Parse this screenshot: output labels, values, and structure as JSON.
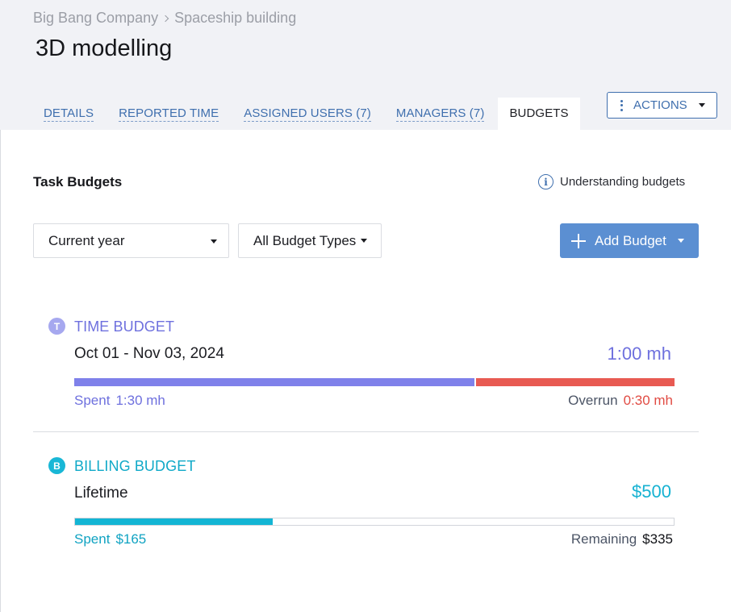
{
  "breadcrumb": {
    "company": "Big Bang Company",
    "project": "Spaceship building"
  },
  "page_title": "3D modelling",
  "tabs": [
    {
      "label": "DETAILS",
      "active": false
    },
    {
      "label": "REPORTED TIME",
      "active": false
    },
    {
      "label": "ASSIGNED USERS (7)",
      "active": false
    },
    {
      "label": "MANAGERS (7)",
      "active": false
    },
    {
      "label": "BUDGETS",
      "active": true
    }
  ],
  "actions": {
    "label": "ACTIONS",
    "icon": "kebab-icon"
  },
  "section": {
    "title": "Task Budgets",
    "help_label": "Understanding budgets",
    "help_icon": "info-icon"
  },
  "filters": {
    "period": {
      "selected": "Current year"
    },
    "budget_type": {
      "selected": "All Budget Types"
    }
  },
  "add_button": {
    "label": "Add Budget",
    "icon": "plus-icon"
  },
  "budgets": [
    {
      "badge": "T",
      "type_label": "TIME BUDGET",
      "period": "Oct 01 - Nov 03, 2024",
      "amount": "1:00 mh",
      "left_label": "Spent",
      "left_value": "1:30 mh",
      "right_label": "Overrun",
      "right_value": "0:30 mh",
      "spent_fraction": 0.667,
      "color": "#7f81ea",
      "overrun_color": "#e85a52"
    },
    {
      "badge": "B",
      "type_label": "BILLING BUDGET",
      "period": "Lifetime",
      "amount": "$500",
      "left_label": "Spent",
      "left_value": "$165",
      "right_label": "Remaining",
      "right_value": "$335",
      "spent_fraction": 0.33,
      "color": "#13b5d4"
    }
  ],
  "colors": {
    "accent": "#3f6fae",
    "primary_button": "#5b8fd2",
    "header_bg": "#f1f2f6"
  }
}
